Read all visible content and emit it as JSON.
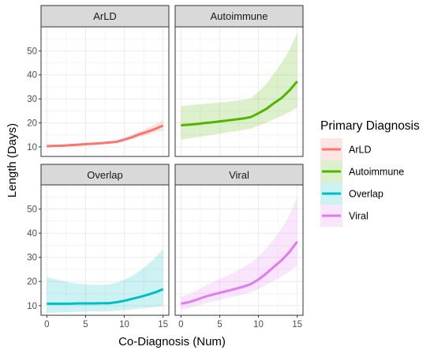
{
  "chart_data": {
    "type": "line",
    "facet_by": "Primary Diagnosis",
    "xlabel": "Co-Diagnosis (Num)",
    "ylabel": "Length (Days)",
    "xlim": [
      -0.75,
      15.75
    ],
    "ylim": [
      6,
      60
    ],
    "x_ticks": [
      0,
      5,
      10,
      15
    ],
    "y_ticks": [
      10,
      20,
      30,
      40,
      50
    ],
    "grid": true,
    "legend_position": "right",
    "legend_title": "Primary Diagnosis",
    "colors": {
      "ArLD": "#F8766D",
      "Autoimmune": "#53B400",
      "Overlap": "#00BFC4",
      "Viral": "#E07CF0"
    },
    "panels": [
      {
        "label": "ArLD",
        "x": [
          0,
          1,
          2,
          3,
          4,
          5,
          6,
          7,
          8,
          9,
          10,
          11,
          12,
          13,
          14,
          15
        ],
        "y": [
          10.3,
          10.4,
          10.5,
          10.7,
          10.9,
          11.1,
          11.3,
          11.5,
          11.8,
          12.1,
          13.0,
          14.0,
          15.3,
          16.3,
          17.5,
          18.9
        ],
        "lower": [
          9.9,
          10.0,
          10.1,
          10.3,
          10.5,
          10.7,
          10.9,
          11.1,
          11.4,
          11.7,
          12.4,
          13.2,
          14.2,
          15.0,
          15.9,
          16.8
        ],
        "upper": [
          10.8,
          10.9,
          11.0,
          11.2,
          11.4,
          11.6,
          11.8,
          12.0,
          12.3,
          12.6,
          13.7,
          15.0,
          16.5,
          17.9,
          19.4,
          21.2
        ]
      },
      {
        "label": "Autoimmune",
        "x": [
          0,
          1,
          2,
          3,
          4,
          5,
          6,
          7,
          8,
          9,
          10,
          11,
          12,
          13,
          14,
          15
        ],
        "y": [
          19.0,
          19.2,
          19.5,
          19.9,
          20.2,
          20.6,
          21.0,
          21.4,
          21.8,
          22.4,
          24.0,
          25.8,
          28.2,
          30.4,
          33.5,
          37.3
        ],
        "lower": [
          13.0,
          13.5,
          14.0,
          14.5,
          15.0,
          15.5,
          16.0,
          16.5,
          17.0,
          17.6,
          18.8,
          20.0,
          21.5,
          22.9,
          24.5,
          26.4
        ],
        "upper": [
          27.0,
          27.3,
          27.6,
          27.9,
          28.2,
          28.5,
          28.8,
          29.2,
          29.6,
          30.2,
          33.0,
          36.2,
          40.5,
          45.0,
          50.5,
          57.5
        ]
      },
      {
        "label": "Overlap",
        "x": [
          0,
          1,
          2,
          3,
          4,
          5,
          6,
          7,
          8,
          9,
          10,
          11,
          12,
          13,
          14,
          15
        ],
        "y": [
          10.8,
          10.8,
          10.8,
          10.8,
          10.9,
          10.9,
          10.9,
          11.0,
          11.0,
          11.4,
          12.0,
          12.8,
          13.6,
          14.5,
          15.5,
          16.8
        ],
        "lower": [
          7.0,
          7.1,
          7.2,
          7.3,
          7.4,
          7.5,
          7.6,
          7.6,
          7.7,
          7.9,
          8.2,
          8.5,
          8.8,
          9.1,
          9.4,
          9.8
        ],
        "upper": [
          21.8,
          21.0,
          20.2,
          19.6,
          19.1,
          18.8,
          18.6,
          18.6,
          18.8,
          19.4,
          20.7,
          22.3,
          24.4,
          26.9,
          29.8,
          33.5
        ]
      },
      {
        "label": "Viral",
        "x": [
          0,
          1,
          2,
          3,
          4,
          5,
          6,
          7,
          8,
          9,
          10,
          11,
          12,
          13,
          14,
          15
        ],
        "y": [
          10.8,
          11.4,
          12.4,
          13.6,
          14.5,
          15.3,
          16.1,
          16.9,
          17.8,
          18.9,
          20.8,
          23.3,
          26.1,
          28.8,
          32.2,
          36.5
        ],
        "lower": [
          8.3,
          8.9,
          9.8,
          10.8,
          11.6,
          12.4,
          13.1,
          13.8,
          14.6,
          15.5,
          16.8,
          18.6,
          20.3,
          22.0,
          24.2,
          26.6
        ],
        "upper": [
          13.6,
          14.8,
          16.3,
          18.0,
          19.5,
          21.0,
          22.5,
          24.0,
          25.7,
          27.6,
          30.2,
          33.6,
          37.6,
          42.0,
          47.5,
          54.8
        ]
      }
    ]
  }
}
